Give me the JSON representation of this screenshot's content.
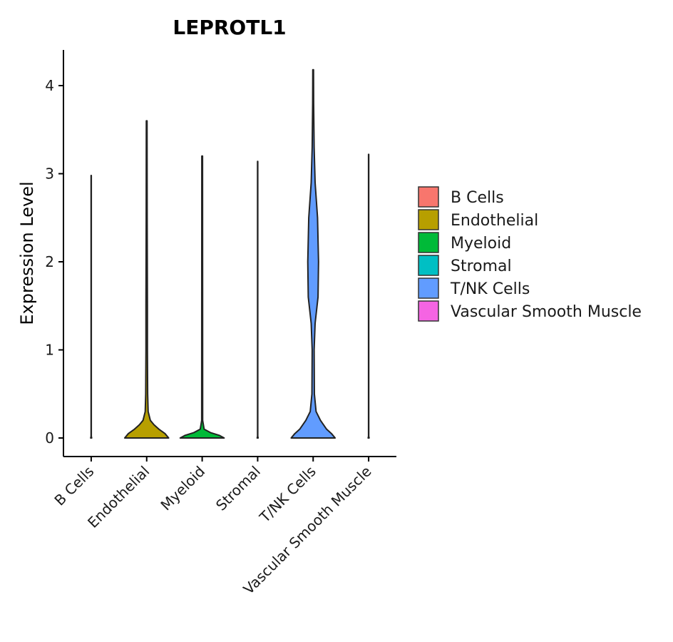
{
  "chart_data": {
    "type": "violin",
    "title": "LEPROTL1",
    "xlabel": "",
    "ylabel": "Expression Level",
    "ylim": [
      -0.2,
      4.4
    ],
    "yticks": [
      0,
      1,
      2,
      3,
      4
    ],
    "categories": [
      "B Cells",
      "Endothelial",
      "Myeloid",
      "Stromal",
      "T/NK Cells",
      "Vascular Smooth Muscle"
    ],
    "colors": [
      "#F8766D",
      "#B79F00",
      "#00BA38",
      "#00BFC4",
      "#619CFF",
      "#F564E3"
    ],
    "legend_title": "",
    "legend_position": "right",
    "series": [
      {
        "name": "B Cells",
        "max": 2.98,
        "density": [
          [
            0,
            0.02
          ],
          [
            0.02,
            0.005
          ],
          [
            2.98,
            0.005
          ]
        ]
      },
      {
        "name": "Endothelial",
        "max": 3.6,
        "density": [
          [
            0,
            0.9
          ],
          [
            0.05,
            0.75
          ],
          [
            0.1,
            0.5
          ],
          [
            0.15,
            0.3
          ],
          [
            0.2,
            0.15
          ],
          [
            0.3,
            0.06
          ],
          [
            0.5,
            0.04
          ],
          [
            1.0,
            0.03
          ],
          [
            1.5,
            0.03
          ],
          [
            2.5,
            0.02
          ],
          [
            3.6,
            0.015
          ]
        ]
      },
      {
        "name": "Myeloid",
        "max": 3.2,
        "density": [
          [
            0,
            0.9
          ],
          [
            0.03,
            0.7
          ],
          [
            0.06,
            0.35
          ],
          [
            0.1,
            0.08
          ],
          [
            0.2,
            0.02
          ],
          [
            3.2,
            0.015
          ]
        ]
      },
      {
        "name": "Stromal",
        "max": 3.14,
        "density": [
          [
            0,
            0.02
          ],
          [
            0.02,
            0.005
          ],
          [
            3.14,
            0.005
          ]
        ]
      },
      {
        "name": "T/NK Cells",
        "max": 4.18,
        "density": [
          [
            0,
            0.9
          ],
          [
            0.05,
            0.75
          ],
          [
            0.1,
            0.55
          ],
          [
            0.2,
            0.3
          ],
          [
            0.3,
            0.12
          ],
          [
            0.5,
            0.05
          ],
          [
            1.0,
            0.04
          ],
          [
            1.3,
            0.08
          ],
          [
            1.6,
            0.2
          ],
          [
            2.0,
            0.22
          ],
          [
            2.5,
            0.18
          ],
          [
            2.9,
            0.08
          ],
          [
            3.3,
            0.04
          ],
          [
            3.8,
            0.02
          ],
          [
            4.18,
            0.015
          ]
        ]
      },
      {
        "name": "Vascular Smooth Muscle",
        "max": 3.22,
        "density": [
          [
            0,
            0.02
          ],
          [
            0.02,
            0.005
          ],
          [
            3.22,
            0.005
          ]
        ]
      }
    ]
  }
}
